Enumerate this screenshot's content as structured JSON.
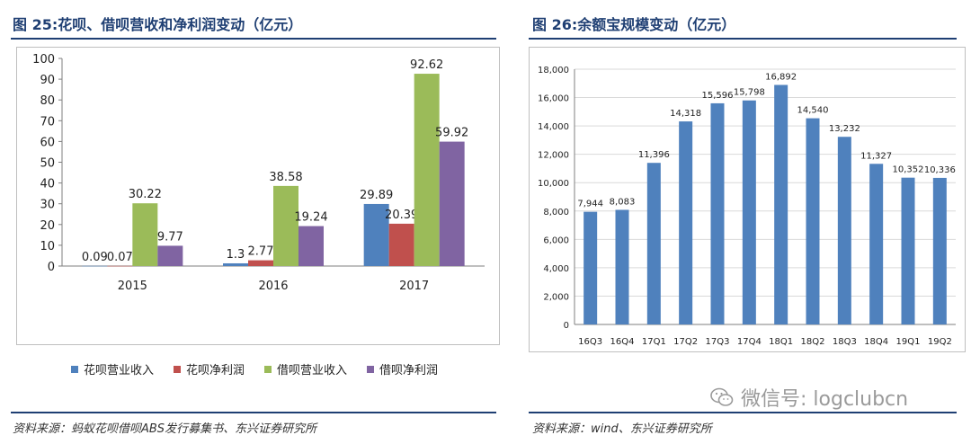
{
  "left": {
    "title": "图 25:花呗、借呗营收和净利润变动（亿元）",
    "source": "资料来源：蚂蚁花呗借呗ABS发行募集书、东兴证券研究所"
  },
  "right": {
    "title": "图 26:余额宝规模变动（亿元）",
    "source": "资料来源：wind、东兴证券研究所"
  },
  "watermark": {
    "text": "微信号: logclubcn",
    "icon": "wechat-icon"
  },
  "chart_data": [
    {
      "type": "bar",
      "title": "图 25:花呗、借呗营收和净利润变动（亿元）",
      "categories": [
        "2015",
        "2016",
        "2017"
      ],
      "series": [
        {
          "name": "花呗营业收入",
          "values": [
            0.09,
            1.3,
            29.89
          ],
          "labels": [
            "0.09",
            "1.3",
            "29.89"
          ],
          "color": "#4f81bd"
        },
        {
          "name": "花呗净利润",
          "values": [
            0.07,
            2.77,
            20.39
          ],
          "labels": [
            "0.07",
            "2.77",
            "20.39"
          ],
          "color": "#c0504d"
        },
        {
          "name": "借呗营业收入",
          "values": [
            30.22,
            38.58,
            92.62
          ],
          "labels": [
            "30.22",
            "38.58",
            "92.62"
          ],
          "color": "#9bbb59"
        },
        {
          "name": "借呗净利润",
          "values": [
            9.77,
            19.24,
            59.92
          ],
          "labels": [
            "9.77",
            "19.24",
            "59.92"
          ],
          "color": "#8064a2"
        }
      ],
      "ylim": [
        0,
        100
      ],
      "yticks": [
        "0",
        "10",
        "20",
        "30",
        "40",
        "50",
        "60",
        "70",
        "80",
        "90",
        "100"
      ],
      "grid": false,
      "legend": "bottom"
    },
    {
      "type": "bar",
      "title": "图 26:余额宝规模变动（亿元）",
      "categories": [
        "16Q3",
        "16Q4",
        "17Q1",
        "17Q2",
        "17Q3",
        "17Q4",
        "18Q1",
        "18Q2",
        "18Q3",
        "18Q4",
        "19Q1",
        "19Q2"
      ],
      "values": [
        7944,
        8083,
        11396,
        14318,
        15596,
        15798,
        16892,
        14540,
        13232,
        11327,
        10352,
        10336
      ],
      "labels": [
        "7,944",
        "8,083",
        "11,396",
        "14,318",
        "15,596",
        "15,798",
        "16,892",
        "14,540",
        "13,232",
        "11,327",
        "10,352",
        "10,336"
      ],
      "color": "#4f81bd",
      "ylim": [
        0,
        18000
      ],
      "yticks": [
        "0",
        "2,000",
        "4,000",
        "6,000",
        "8,000",
        "10,000",
        "12,000",
        "14,000",
        "16,000",
        "18,000"
      ],
      "grid": true,
      "legend": "none"
    }
  ]
}
